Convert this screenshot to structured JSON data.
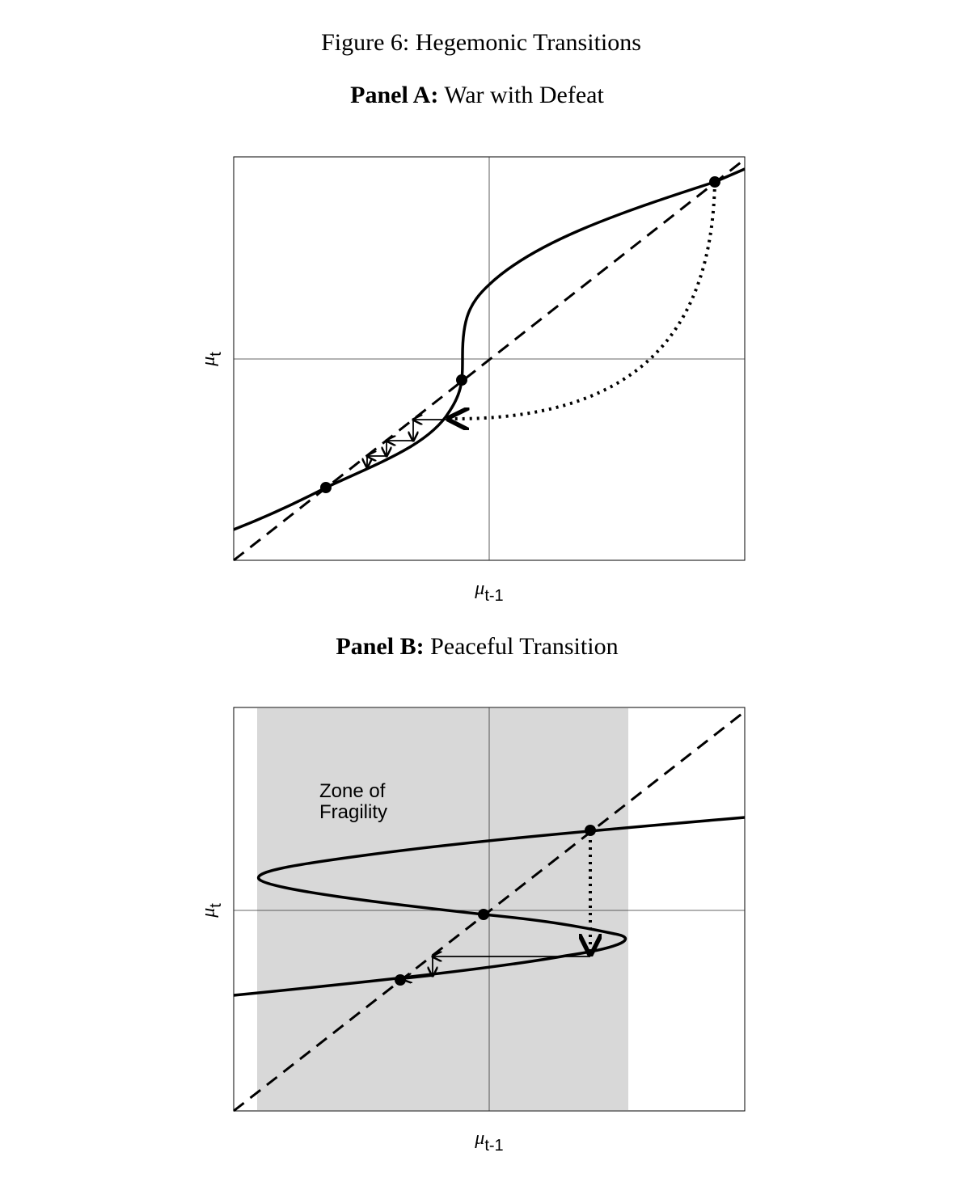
{
  "figure": {
    "title": "Figure 6: Hegemonic Transitions"
  },
  "panels": [
    {
      "label": "Panel A:",
      "title": "War with Defeat",
      "x_label": {
        "symbol": "μ",
        "subscript": "t-1"
      },
      "y_label": {
        "symbol": "μ",
        "subscript": "t"
      }
    },
    {
      "label": "Panel B:",
      "title": "Peaceful Transition",
      "x_label": {
        "symbol": "μ",
        "subscript": "t-1"
      },
      "y_label": {
        "symbol": "μ",
        "subscript": "t"
      },
      "annotation": [
        "Zone of",
        "Fragility"
      ]
    }
  ]
}
